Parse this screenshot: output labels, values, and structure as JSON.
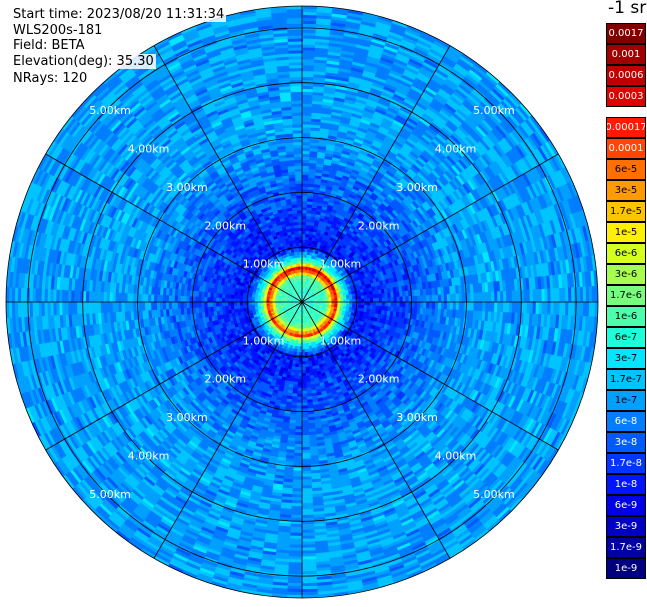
{
  "header": {
    "start_time": "Start time: 2023/08/20 11:31:34",
    "instrument": "WLS200s-181",
    "field": "Field: BETA",
    "elevation": "Elevation(deg): 35.30",
    "nrays": "NRays: 120"
  },
  "colorbar": {
    "title": "-1 sr",
    "upper_group": [
      {
        "label": "0.0017",
        "color": "#800000"
      },
      {
        "label": "0.001",
        "color": "#a00000"
      },
      {
        "label": "0.0006",
        "color": "#c00000"
      },
      {
        "label": "0.0003",
        "color": "#e00000"
      }
    ],
    "lower_group": [
      {
        "label": "0.00017",
        "color": "#ff1a00"
      },
      {
        "label": "0.0001",
        "color": "#ff4500"
      },
      {
        "label": "6e-5",
        "color": "#ff7000"
      },
      {
        "label": "3e-5",
        "color": "#ff9a00"
      },
      {
        "label": "1.7e-5",
        "color": "#ffc400"
      },
      {
        "label": "1e-5",
        "color": "#ffef00"
      },
      {
        "label": "6e-6",
        "color": "#d4ff20"
      },
      {
        "label": "3e-6",
        "color": "#a6ff4f"
      },
      {
        "label": "1.7e-6",
        "color": "#78ff7d"
      },
      {
        "label": "1e-6",
        "color": "#4bffac"
      },
      {
        "label": "6e-7",
        "color": "#1dffda"
      },
      {
        "label": "3e-7",
        "color": "#00e6ff"
      },
      {
        "label": "1.7e-7",
        "color": "#00c4ff"
      },
      {
        "label": "1e-7",
        "color": "#00a0ff"
      },
      {
        "label": "6e-8",
        "color": "#007eff"
      },
      {
        "label": "3e-8",
        "color": "#005aff"
      },
      {
        "label": "1.7e-8",
        "color": "#0036ff"
      },
      {
        "label": "1e-8",
        "color": "#0014ff"
      },
      {
        "label": "6e-9",
        "color": "#0000e6"
      },
      {
        "label": "3e-9",
        "color": "#0000c4"
      },
      {
        "label": "1.7e-9",
        "color": "#0000a0"
      },
      {
        "label": "1e-9",
        "color": "#00007e"
      }
    ]
  },
  "chart_data": {
    "type": "heatmap",
    "projection": "polar (PPI scan)",
    "field": "BETA",
    "units": "-1 sr",
    "range_ring_labels": [
      "1.00km",
      "2.00km",
      "3.00km",
      "4.00km",
      "5.00km"
    ],
    "range_rings_km": [
      1,
      2,
      3,
      4,
      5
    ],
    "max_range_km": 5.4,
    "spoke_count": 12,
    "colorbar_ticks": [
      "0.0017",
      "0.001",
      "0.0006",
      "0.0003",
      "0.00017",
      "0.0001",
      "6e-5",
      "3e-5",
      "1.7e-5",
      "1e-5",
      "6e-6",
      "3e-6",
      "1.7e-6",
      "1e-6",
      "6e-7",
      "3e-7",
      "1.7e-7",
      "1e-7",
      "6e-8",
      "3e-8",
      "1.7e-8",
      "1e-8",
      "6e-9",
      "3e-9",
      "1.7e-9",
      "1e-9"
    ],
    "radial_profile_approx": [
      {
        "range_km": 0.1,
        "value": "6e-7"
      },
      {
        "range_km": 0.45,
        "value": "1e-6"
      },
      {
        "range_km": 0.55,
        "value": "3e-5"
      },
      {
        "range_km": 0.62,
        "value": "0.00017"
      },
      {
        "range_km": 0.7,
        "value": "1.7e-6"
      },
      {
        "range_km": 1.0,
        "value": "1e-8"
      },
      {
        "range_km": 2.0,
        "value": "3e-8"
      },
      {
        "range_km": 3.0,
        "value": "1e-7"
      },
      {
        "range_km": 5.0,
        "value": "1e-7"
      }
    ],
    "nrays": 120,
    "elevation_deg": 35.3
  }
}
